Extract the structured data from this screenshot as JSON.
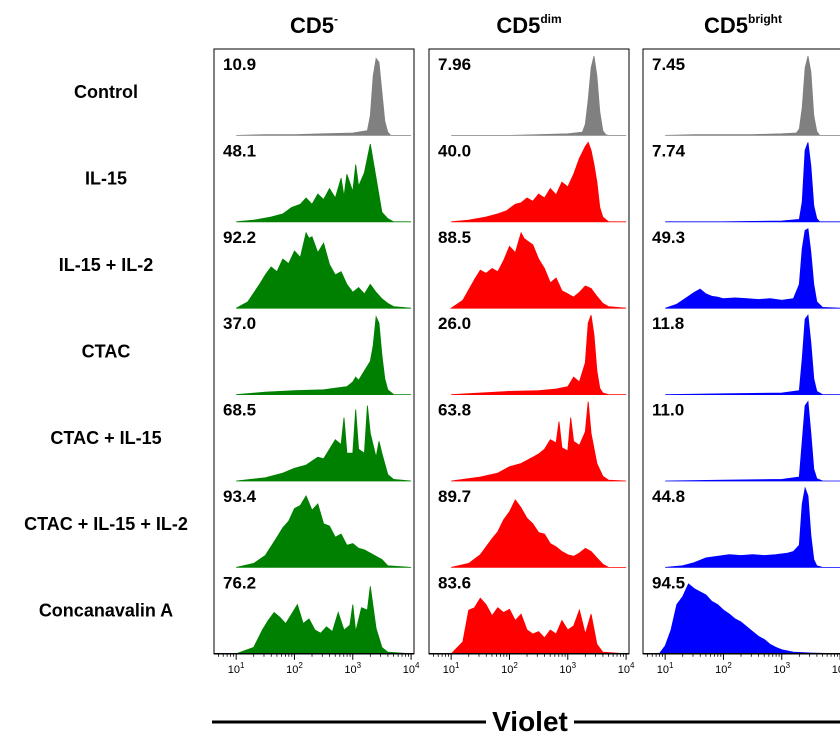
{
  "chart_data": {
    "type": "area",
    "columns": [
      {
        "base": "CD5",
        "sup": "-",
        "color": "#008000"
      },
      {
        "base": "CD5",
        "sup": "dim",
        "color": "#ff0000"
      },
      {
        "base": "CD5",
        "sup": "bright",
        "color": "#0000ff"
      }
    ],
    "control_color": "#808080",
    "rows": [
      "Control",
      "IL-15",
      "IL-15 + IL-2",
      "CTAC",
      "CTAC + IL-15",
      "CTAC + IL-15 + IL-2",
      "Concanavalin A"
    ],
    "percentages": [
      [
        "10.9",
        "7.96",
        "7.45"
      ],
      [
        "48.1",
        "40.0",
        "7.74"
      ],
      [
        "92.2",
        "88.5",
        "49.3"
      ],
      [
        "37.0",
        "26.0",
        "11.8"
      ],
      [
        "68.5",
        "63.8",
        "11.0"
      ],
      [
        "93.4",
        "89.7",
        "44.8"
      ],
      [
        "76.2",
        "83.6",
        "94.5"
      ]
    ],
    "xlabel": "Violet",
    "x_scale": "log",
    "xlim": [
      10,
      10000
    ],
    "x_ticks": [
      {
        "base": "10",
        "exp": "1"
      },
      {
        "base": "10",
        "exp": "2"
      },
      {
        "base": "10",
        "exp": "3"
      },
      {
        "base": "10",
        "exp": "4"
      }
    ],
    "histograms": [
      [
        {
          "x": [
            1.0,
            1.5,
            2.0,
            2.5,
            3.0,
            3.25,
            3.3,
            3.35,
            3.4,
            3.45,
            3.5,
            3.55,
            3.6,
            3.65,
            3.7,
            3.75,
            4.0
          ],
          "y": [
            0,
            0.01,
            0.01,
            0.02,
            0.03,
            0.06,
            0.25,
            0.75,
            0.97,
            0.92,
            0.55,
            0.18,
            0.04,
            0,
            0,
            0,
            0
          ]
        },
        {
          "x": [
            1.0,
            1.5,
            2.0,
            2.5,
            3.0,
            3.25,
            3.3,
            3.35,
            3.4,
            3.45,
            3.5,
            3.55,
            3.6,
            3.65,
            3.7,
            3.75,
            4.0
          ],
          "y": [
            0,
            0,
            0,
            0.01,
            0.02,
            0.04,
            0.14,
            0.45,
            0.85,
            1.0,
            0.75,
            0.3,
            0.06,
            0.01,
            0,
            0,
            0
          ]
        },
        {
          "x": [
            1.0,
            1.5,
            2.0,
            2.5,
            3.0,
            3.25,
            3.3,
            3.35,
            3.4,
            3.45,
            3.5,
            3.55,
            3.6,
            3.65,
            3.7,
            3.75,
            4.0
          ],
          "y": [
            0,
            0.01,
            0.01,
            0.01,
            0.02,
            0.03,
            0.08,
            0.35,
            0.85,
            1.0,
            0.8,
            0.25,
            0.05,
            0,
            0,
            0,
            0
          ]
        }
      ],
      [
        {
          "x": [
            1.0,
            1.3,
            1.6,
            1.8,
            1.95,
            2.1,
            2.2,
            2.3,
            2.4,
            2.5,
            2.6,
            2.7,
            2.8,
            2.85,
            2.9,
            3.0,
            3.05,
            3.1,
            3.2,
            3.3,
            3.4,
            3.5,
            3.6,
            3.7,
            4.0
          ],
          "y": [
            0,
            0.02,
            0.06,
            0.1,
            0.18,
            0.22,
            0.3,
            0.22,
            0.35,
            0.28,
            0.42,
            0.3,
            0.55,
            0.32,
            0.6,
            0.38,
            0.72,
            0.45,
            0.62,
            0.98,
            0.55,
            0.12,
            0.04,
            0,
            0
          ]
        },
        {
          "x": [
            1.0,
            1.3,
            1.6,
            1.8,
            1.95,
            2.1,
            2.2,
            2.3,
            2.4,
            2.5,
            2.6,
            2.7,
            2.8,
            2.9,
            3.0,
            3.1,
            3.2,
            3.3,
            3.35,
            3.4,
            3.45,
            3.5,
            3.55,
            3.6,
            3.7,
            4.0
          ],
          "y": [
            0,
            0.02,
            0.06,
            0.1,
            0.14,
            0.22,
            0.24,
            0.3,
            0.26,
            0.35,
            0.3,
            0.42,
            0.34,
            0.5,
            0.44,
            0.6,
            0.8,
            0.95,
            1.0,
            0.9,
            0.72,
            0.5,
            0.18,
            0.06,
            0,
            0
          ]
        },
        {
          "x": [
            1.0,
            2.0,
            3.0,
            3.3,
            3.35,
            3.4,
            3.45,
            3.5,
            3.55,
            3.6,
            3.65,
            3.7,
            4.0
          ],
          "y": [
            0,
            0,
            0.01,
            0.03,
            0.25,
            0.9,
            1.0,
            0.7,
            0.2,
            0.04,
            0,
            0,
            0
          ]
        }
      ],
      [
        {
          "x": [
            1.0,
            1.2,
            1.4,
            1.5,
            1.6,
            1.7,
            1.8,
            1.9,
            2.0,
            2.1,
            2.2,
            2.25,
            2.3,
            2.4,
            2.5,
            2.6,
            2.7,
            2.8,
            2.9,
            3.0,
            3.1,
            3.2,
            3.3,
            3.4,
            3.5,
            3.6,
            3.7,
            4.0
          ],
          "y": [
            0,
            0.08,
            0.3,
            0.42,
            0.52,
            0.46,
            0.62,
            0.56,
            0.72,
            0.64,
            0.95,
            0.88,
            0.9,
            0.7,
            0.82,
            0.55,
            0.42,
            0.46,
            0.3,
            0.2,
            0.26,
            0.18,
            0.3,
            0.2,
            0.12,
            0.06,
            0.02,
            0
          ]
        },
        {
          "x": [
            1.0,
            1.2,
            1.4,
            1.5,
            1.6,
            1.7,
            1.8,
            1.9,
            2.0,
            2.1,
            2.2,
            2.25,
            2.3,
            2.4,
            2.5,
            2.6,
            2.7,
            2.8,
            2.9,
            3.0,
            3.1,
            3.2,
            3.3,
            3.4,
            3.5,
            3.6,
            3.7,
            4.0
          ],
          "y": [
            0,
            0.1,
            0.36,
            0.48,
            0.44,
            0.5,
            0.46,
            0.6,
            0.78,
            0.7,
            0.95,
            0.88,
            0.85,
            0.8,
            0.62,
            0.5,
            0.32,
            0.38,
            0.22,
            0.18,
            0.14,
            0.2,
            0.28,
            0.25,
            0.15,
            0.06,
            0.02,
            0
          ]
        },
        {
          "x": [
            1.0,
            1.2,
            1.4,
            1.5,
            1.6,
            1.7,
            1.8,
            1.9,
            2.0,
            2.2,
            2.4,
            2.6,
            2.8,
            3.0,
            3.2,
            3.3,
            3.35,
            3.4,
            3.45,
            3.5,
            3.55,
            3.6,
            3.7,
            4.0
          ],
          "y": [
            0,
            0.05,
            0.15,
            0.2,
            0.24,
            0.18,
            0.15,
            0.14,
            0.12,
            0.13,
            0.12,
            0.11,
            0.12,
            0.1,
            0.12,
            0.3,
            0.75,
            0.98,
            1.0,
            0.7,
            0.3,
            0.08,
            0.01,
            0
          ]
        }
      ],
      [
        {
          "x": [
            1.0,
            1.5,
            2.0,
            2.5,
            2.7,
            2.9,
            3.0,
            3.05,
            3.1,
            3.2,
            3.3,
            3.35,
            3.4,
            3.45,
            3.5,
            3.55,
            3.6,
            3.7,
            4.0
          ],
          "y": [
            0,
            0.03,
            0.05,
            0.06,
            0.08,
            0.1,
            0.16,
            0.22,
            0.18,
            0.3,
            0.42,
            0.62,
            0.98,
            0.9,
            0.5,
            0.2,
            0.06,
            0,
            0
          ]
        },
        {
          "x": [
            1.0,
            1.5,
            2.0,
            2.5,
            2.8,
            3.0,
            3.1,
            3.2,
            3.3,
            3.35,
            3.4,
            3.45,
            3.5,
            3.55,
            3.6,
            3.7,
            4.0
          ],
          "y": [
            0,
            0.02,
            0.04,
            0.05,
            0.07,
            0.1,
            0.22,
            0.16,
            0.4,
            0.9,
            1.0,
            0.75,
            0.3,
            0.08,
            0.02,
            0,
            0
          ]
        },
        {
          "x": [
            1.0,
            2.0,
            3.0,
            3.3,
            3.35,
            3.4,
            3.45,
            3.5,
            3.55,
            3.6,
            3.7,
            4.0
          ],
          "y": [
            0,
            0.01,
            0.02,
            0.05,
            0.45,
            0.95,
            1.0,
            0.65,
            0.2,
            0.04,
            0,
            0
          ]
        }
      ],
      [
        {
          "x": [
            1.0,
            1.5,
            1.8,
            2.0,
            2.2,
            2.4,
            2.5,
            2.6,
            2.7,
            2.8,
            2.85,
            2.9,
            3.0,
            3.05,
            3.1,
            3.2,
            3.25,
            3.3,
            3.4,
            3.45,
            3.5,
            3.6,
            3.7,
            4.0
          ],
          "y": [
            0,
            0.04,
            0.1,
            0.16,
            0.2,
            0.3,
            0.28,
            0.4,
            0.52,
            0.46,
            0.8,
            0.35,
            0.35,
            0.9,
            0.4,
            0.35,
            0.95,
            0.6,
            0.3,
            0.5,
            0.35,
            0.08,
            0.02,
            0
          ]
        },
        {
          "x": [
            1.0,
            1.5,
            1.8,
            2.0,
            2.2,
            2.4,
            2.5,
            2.6,
            2.7,
            2.8,
            2.85,
            2.9,
            3.0,
            3.05,
            3.1,
            3.2,
            3.3,
            3.35,
            3.4,
            3.5,
            3.6,
            3.7,
            4.0
          ],
          "y": [
            0,
            0.05,
            0.1,
            0.18,
            0.22,
            0.3,
            0.34,
            0.4,
            0.52,
            0.48,
            0.75,
            0.42,
            0.38,
            0.8,
            0.5,
            0.45,
            0.62,
            1.0,
            0.6,
            0.22,
            0.06,
            0.01,
            0
          ]
        },
        {
          "x": [
            1.0,
            2.0,
            3.0,
            3.3,
            3.35,
            3.4,
            3.45,
            3.5,
            3.55,
            3.6,
            3.7,
            4.0
          ],
          "y": [
            0,
            0.01,
            0.02,
            0.05,
            0.5,
            0.95,
            1.0,
            0.6,
            0.15,
            0.03,
            0,
            0
          ]
        }
      ],
      [
        {
          "x": [
            1.0,
            1.3,
            1.5,
            1.7,
            1.8,
            1.9,
            2.0,
            2.1,
            2.2,
            2.3,
            2.4,
            2.5,
            2.6,
            2.7,
            2.8,
            2.9,
            3.0,
            3.1,
            3.2,
            3.3,
            3.4,
            3.5,
            3.6,
            4.0
          ],
          "y": [
            0,
            0.05,
            0.15,
            0.38,
            0.5,
            0.58,
            0.74,
            0.78,
            0.9,
            0.72,
            0.8,
            0.55,
            0.52,
            0.38,
            0.42,
            0.28,
            0.3,
            0.24,
            0.22,
            0.18,
            0.14,
            0.1,
            0.02,
            0
          ]
        },
        {
          "x": [
            1.0,
            1.3,
            1.5,
            1.7,
            1.8,
            1.9,
            2.0,
            2.1,
            2.2,
            2.3,
            2.4,
            2.5,
            2.6,
            2.7,
            2.8,
            2.9,
            3.0,
            3.1,
            3.2,
            3.3,
            3.4,
            3.5,
            3.6,
            3.7,
            4.0
          ],
          "y": [
            0,
            0.05,
            0.16,
            0.36,
            0.45,
            0.6,
            0.7,
            0.85,
            0.75,
            0.62,
            0.55,
            0.44,
            0.42,
            0.3,
            0.26,
            0.2,
            0.16,
            0.14,
            0.18,
            0.24,
            0.2,
            0.12,
            0.04,
            0,
            0
          ]
        },
        {
          "x": [
            1.0,
            1.3,
            1.5,
            1.7,
            1.9,
            2.1,
            2.3,
            2.5,
            2.7,
            2.9,
            3.1,
            3.2,
            3.3,
            3.35,
            3.4,
            3.45,
            3.5,
            3.55,
            3.6,
            3.7,
            4.0
          ],
          "y": [
            0,
            0.02,
            0.06,
            0.12,
            0.14,
            0.16,
            0.15,
            0.16,
            0.15,
            0.16,
            0.18,
            0.2,
            0.28,
            0.8,
            1.0,
            0.9,
            0.4,
            0.1,
            0.02,
            0,
            0
          ]
        }
      ],
      [
        {
          "x": [
            1.0,
            1.3,
            1.45,
            1.55,
            1.65,
            1.75,
            1.85,
            1.95,
            2.05,
            2.15,
            2.25,
            2.35,
            2.45,
            2.55,
            2.65,
            2.75,
            2.85,
            2.95,
            3.0,
            3.05,
            3.15,
            3.25,
            3.3,
            3.4,
            3.5,
            3.6,
            4.0
          ],
          "y": [
            0,
            0.08,
            0.3,
            0.42,
            0.52,
            0.46,
            0.38,
            0.5,
            0.62,
            0.38,
            0.44,
            0.3,
            0.26,
            0.34,
            0.28,
            0.52,
            0.3,
            0.36,
            0.62,
            0.28,
            0.58,
            0.55,
            0.85,
            0.32,
            0.08,
            0.02,
            0
          ]
        },
        {
          "x": [
            1.0,
            1.2,
            1.3,
            1.4,
            1.5,
            1.6,
            1.7,
            1.8,
            1.9,
            2.0,
            2.1,
            2.2,
            2.3,
            2.4,
            2.5,
            2.6,
            2.7,
            2.8,
            2.9,
            3.0,
            3.1,
            3.2,
            3.3,
            3.4,
            3.5,
            3.6,
            4.0
          ],
          "y": [
            0,
            0.15,
            0.55,
            0.58,
            0.7,
            0.62,
            0.48,
            0.58,
            0.52,
            0.56,
            0.42,
            0.5,
            0.3,
            0.25,
            0.28,
            0.2,
            0.3,
            0.25,
            0.42,
            0.3,
            0.35,
            0.55,
            0.25,
            0.5,
            0.12,
            0.02,
            0
          ]
        },
        {
          "x": [
            0.9,
            1.0,
            1.1,
            1.2,
            1.3,
            1.4,
            1.5,
            1.6,
            1.7,
            1.8,
            1.9,
            2.0,
            2.1,
            2.2,
            2.3,
            2.4,
            2.5,
            2.6,
            2.7,
            2.8,
            2.9,
            3.0,
            3.2,
            3.5,
            4.0
          ],
          "y": [
            0,
            0.1,
            0.3,
            0.62,
            0.72,
            0.88,
            0.82,
            0.78,
            0.74,
            0.66,
            0.62,
            0.55,
            0.5,
            0.44,
            0.4,
            0.34,
            0.28,
            0.22,
            0.18,
            0.12,
            0.08,
            0.05,
            0.02,
            0.01,
            0
          ]
        }
      ]
    ]
  }
}
